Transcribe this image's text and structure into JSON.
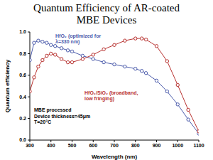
{
  "chart_data": {
    "type": "line",
    "title": "Quantum Efficiency of AR-coated\nMBE Devices",
    "x_label": "Wavelength (nm)",
    "y_label": "Quantum efficiency",
    "x": [
      300,
      320,
      340,
      360,
      380,
      400,
      420,
      450,
      480,
      500,
      550,
      600,
      650,
      700,
      750,
      800,
      830,
      850,
      900,
      950,
      1000,
      1050,
      1100
    ],
    "series": [
      {
        "name": "HfO₂ (optimized for\nλ=330 nm)",
        "color": "#4b5bab",
        "marker": "circle",
        "values": [
          0.74,
          0.9,
          0.92,
          0.91,
          0.9,
          0.88,
          0.87,
          0.85,
          0.83,
          0.82,
          0.78,
          0.75,
          0.72,
          0.7,
          0.68,
          0.66,
          0.64,
          0.62,
          0.55,
          0.45,
          0.33,
          0.19,
          0.06
        ]
      },
      {
        "name": "HfO₂/SiO₂ (broadband,\nlow fringing)",
        "color": "#b8312f",
        "marker": "circle",
        "values": [
          0.45,
          0.58,
          0.68,
          0.74,
          0.78,
          0.8,
          0.79,
          0.75,
          0.72,
          0.72,
          0.75,
          0.79,
          0.84,
          0.88,
          0.92,
          0.94,
          0.94,
          0.93,
          0.87,
          0.73,
          0.51,
          0.28,
          0.08
        ]
      }
    ],
    "annotations": [
      "MBE processed\nDevice thickness=45μm\nT=20°C"
    ],
    "xlim": [
      300,
      1100
    ],
    "xticks": [
      300,
      400,
      500,
      600,
      700,
      800,
      900,
      1000,
      1100
    ],
    "ylim": [
      0,
      1
    ],
    "yticks": [
      {
        "value": 0,
        "label": "0.0"
      },
      0.2,
      0.4,
      0.6,
      0.8,
      {
        "value": 1,
        "label": "1.0"
      }
    ],
    "grid": false
  }
}
